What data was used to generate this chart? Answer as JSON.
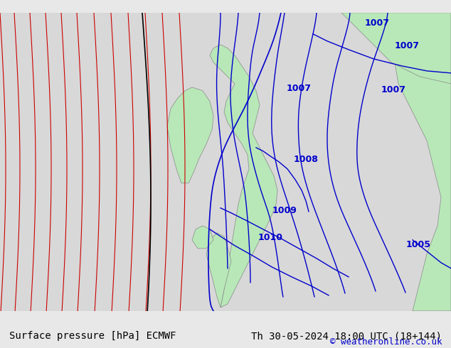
{
  "title_left": "Surface pressure [hPa] ECMWF",
  "title_right": "Th 30-05-2024 18:00 UTC (18+144)",
  "copyright": "© weatheronline.co.uk",
  "bg_color": "#d8d8d8",
  "land_color": "#b8e8b8",
  "sea_color": "#d8d8d8",
  "text_color": "#000000",
  "footer_bg": "#e8e8e8",
  "blue_line_color": "#0000cc",
  "red_line_color": "#cc0000",
  "black_line_color": "#000000",
  "isobar_labels": [
    "1007",
    "1007",
    "1007",
    "1008",
    "1009",
    "1010",
    "1005"
  ],
  "font_size_footer": 10,
  "font_size_label": 9
}
